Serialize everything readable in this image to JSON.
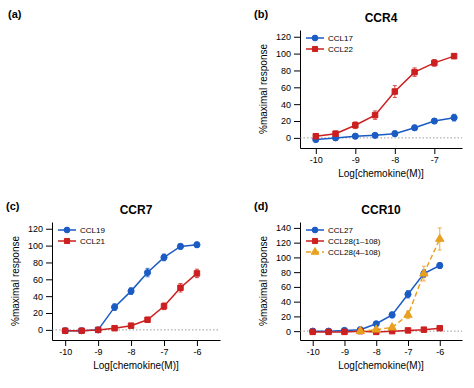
{
  "chart_data": [
    {
      "type": "empty",
      "annotations": [
        "(a)"
      ]
    },
    {
      "type": "line",
      "title": "CCR4",
      "annotations": [
        "(b)"
      ],
      "x_label": "Log[chemokine(M)]",
      "y_label": "%maximal response",
      "xlim": [
        -10.4,
        -6.3
      ],
      "ylim": [
        -12,
        128
      ],
      "xticks": [
        -10,
        -9,
        -8,
        -7
      ],
      "yticks": [
        0,
        20,
        40,
        60,
        80,
        100,
        120
      ],
      "hline": 0,
      "legend": "upper left",
      "series": [
        {
          "name": "CCL17",
          "color": "#1a5bc4",
          "marker": "circle",
          "line_style": "solid",
          "x": [
            -10,
            -9.5,
            -9,
            -8.5,
            -8,
            -7.5,
            -7,
            -6.5
          ],
          "values": [
            -2,
            0,
            2,
            3,
            5,
            12,
            20,
            24
          ],
          "errors": [
            2,
            1,
            1,
            2,
            3,
            3,
            3,
            4
          ]
        },
        {
          "name": "CCL22",
          "color": "#cc1f1f",
          "marker": "square",
          "line_style": "solid",
          "x": [
            -10,
            -9.5,
            -9,
            -8.5,
            -8,
            -7.5,
            -7,
            -6.5
          ],
          "values": [
            2,
            5,
            15,
            27,
            55,
            78,
            89,
            97
          ],
          "errors": [
            3,
            3,
            4,
            5,
            7,
            5,
            4,
            3
          ]
        }
      ]
    },
    {
      "type": "line",
      "title": "CCR7",
      "annotations": [
        "(c)"
      ],
      "x_label": "Log[chemokine(M)]",
      "y_label": "%maximal response",
      "xlim": [
        -10.4,
        -5.3
      ],
      "ylim": [
        -12,
        128
      ],
      "xticks": [
        -10,
        -9,
        -8,
        -7,
        -6
      ],
      "yticks": [
        0,
        20,
        40,
        60,
        80,
        100,
        120
      ],
      "hline": 0,
      "legend": "upper left",
      "series": [
        {
          "name": "CCL19",
          "color": "#1a5bc4",
          "marker": "circle",
          "line_style": "solid",
          "x": [
            -10,
            -9.5,
            -9,
            -8.5,
            -8,
            -7.5,
            -7,
            -6.5,
            -6
          ],
          "values": [
            -1,
            -1,
            0,
            27,
            46,
            68,
            86,
            99,
            101
          ],
          "errors": [
            1,
            1,
            2,
            4,
            4,
            5,
            4,
            3,
            3
          ]
        },
        {
          "name": "CCL21",
          "color": "#cc1f1f",
          "marker": "square",
          "line_style": "solid",
          "x": [
            -10,
            -9.5,
            -9,
            -8.5,
            -8,
            -7.5,
            -7,
            -6.5,
            -6
          ],
          "values": [
            -1,
            -1,
            0,
            2,
            5,
            12,
            28,
            50,
            67
          ],
          "errors": [
            1,
            1,
            1,
            2,
            2,
            3,
            4,
            5,
            5
          ]
        }
      ]
    },
    {
      "type": "line",
      "title": "CCR10",
      "annotations": [
        "(d)"
      ],
      "x_label": "Log[chemokine(M)]",
      "y_label": "%maximal response",
      "xlim": [
        -10.4,
        -5.3
      ],
      "ylim": [
        -12,
        148
      ],
      "xticks": [
        -10,
        -9,
        -8,
        -7,
        -6
      ],
      "yticks": [
        0,
        20,
        40,
        60,
        80,
        100,
        120,
        140
      ],
      "hline": 0,
      "legend": "upper left",
      "series": [
        {
          "name": "CCL27",
          "color": "#1a5bc4",
          "marker": "circle",
          "line_style": "solid",
          "x": [
            -10,
            -9.5,
            -9,
            -8.5,
            -8,
            -7.5,
            -7,
            -6.5,
            -6
          ],
          "values": [
            0,
            0,
            1,
            2,
            10,
            22,
            50,
            78,
            89
          ],
          "errors": [
            1,
            1,
            1,
            2,
            3,
            4,
            5,
            5,
            4
          ]
        },
        {
          "name": "CCL28(1–108)",
          "color": "#cc1f1f",
          "marker": "square",
          "line_style": "solid",
          "x": [
            -10,
            -9.5,
            -9,
            -8.5,
            -8,
            -7.5,
            -7,
            -6.5,
            -6
          ],
          "values": [
            -1,
            -1,
            -1,
            0,
            -1,
            0,
            1,
            2,
            4
          ],
          "errors": [
            1,
            1,
            1,
            1,
            1,
            1,
            1,
            1,
            2
          ]
        },
        {
          "name": "CCL28(4–108)",
          "color": "#e8a020",
          "marker": "triangle",
          "line_style": "dashed",
          "x": [
            -8.5,
            -8,
            -7.5,
            -7,
            -6.5,
            -6
          ],
          "values": [
            0,
            2,
            5,
            22,
            78,
            125
          ],
          "errors": [
            1,
            2,
            3,
            5,
            10,
            15
          ]
        }
      ]
    }
  ]
}
